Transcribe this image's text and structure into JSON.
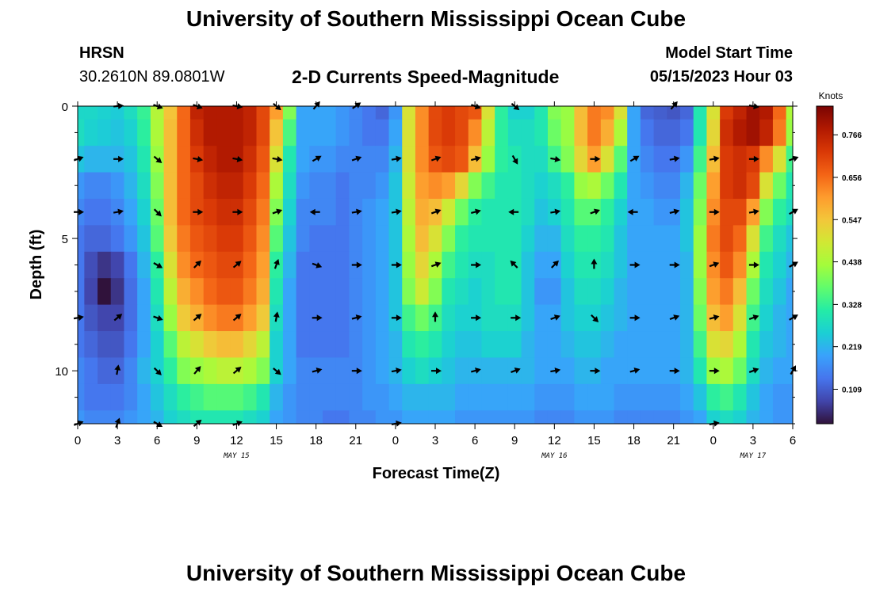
{
  "header": {
    "title": "University of Southern Mississippi Ocean Cube",
    "station": "HRSN",
    "coordinates": "30.2610N  89.0801W",
    "model_start_label": "Model Start Time",
    "model_start_value": "05/15/2023 Hour 03"
  },
  "footer": {
    "title": "University of Southern Mississippi Ocean Cube"
  },
  "chart_data": {
    "type": "heatmap",
    "title": "2-D Currents Speed-Magnitude",
    "xlabel": "Forecast Time(Z)",
    "ylabel": "Depth (ft)",
    "x_range_hours": [
      0,
      54
    ],
    "y_range_ft": [
      0,
      12
    ],
    "x_tick_labels": [
      "0",
      "3",
      "6",
      "9",
      "12",
      "15",
      "18",
      "21",
      "0",
      "3",
      "6",
      "9",
      "12",
      "15",
      "18",
      "21",
      "0",
      "3",
      "6"
    ],
    "y_tick_labels": [
      "0",
      "5",
      "10"
    ],
    "date_labels": [
      {
        "label": "MAY 15",
        "hour": 12
      },
      {
        "label": "MAY 16",
        "hour": 36
      },
      {
        "label": "MAY 17",
        "hour": 51
      }
    ],
    "colorbar": {
      "label": "Knots",
      "range": [
        0.02,
        0.84
      ],
      "ticks": [
        "0.766",
        "0.656",
        "0.547",
        "0.438",
        "0.328",
        "0.219",
        "0.109"
      ],
      "colors": [
        "#30123b",
        "#4145ab",
        "#4675ed",
        "#39a2fc",
        "#1bcfd4",
        "#24eca6",
        "#61fc6c",
        "#a4fc3b",
        "#d1e834",
        "#f3c63a",
        "#fe9b2d",
        "#f36315",
        "#d93806",
        "#b11901",
        "#7a0403"
      ]
    },
    "speed_knots_by_depth_ft": {
      "0": [
        0.27,
        0.27,
        0.26,
        0.25,
        0.28,
        0.33,
        0.45,
        0.55,
        0.66,
        0.76,
        0.78,
        0.78,
        0.78,
        0.76,
        0.7,
        0.6,
        0.4,
        0.2,
        0.2,
        0.2,
        0.18,
        0.16,
        0.14,
        0.12,
        0.18,
        0.5,
        0.62,
        0.7,
        0.72,
        0.7,
        0.68,
        0.5,
        0.32,
        0.26,
        0.26,
        0.3,
        0.4,
        0.42,
        0.56,
        0.64,
        0.62,
        0.5,
        0.2,
        0.12,
        0.11,
        0.1,
        0.12,
        0.3,
        0.5,
        0.72,
        0.76,
        0.8,
        0.78,
        0.66,
        0.44
      ],
      "1": [
        0.28,
        0.26,
        0.25,
        0.24,
        0.26,
        0.32,
        0.44,
        0.56,
        0.66,
        0.74,
        0.78,
        0.78,
        0.78,
        0.76,
        0.7,
        0.55,
        0.35,
        0.2,
        0.2,
        0.2,
        0.18,
        0.16,
        0.14,
        0.14,
        0.2,
        0.5,
        0.62,
        0.7,
        0.72,
        0.7,
        0.62,
        0.46,
        0.32,
        0.28,
        0.28,
        0.3,
        0.38,
        0.42,
        0.56,
        0.64,
        0.58,
        0.44,
        0.2,
        0.14,
        0.12,
        0.12,
        0.14,
        0.3,
        0.52,
        0.74,
        0.78,
        0.8,
        0.76,
        0.64,
        0.42
      ],
      "2": [
        0.24,
        0.22,
        0.22,
        0.22,
        0.24,
        0.3,
        0.42,
        0.56,
        0.66,
        0.72,
        0.76,
        0.78,
        0.78,
        0.74,
        0.68,
        0.5,
        0.3,
        0.2,
        0.18,
        0.18,
        0.16,
        0.16,
        0.16,
        0.16,
        0.22,
        0.5,
        0.62,
        0.68,
        0.7,
        0.68,
        0.56,
        0.42,
        0.32,
        0.3,
        0.28,
        0.28,
        0.34,
        0.4,
        0.52,
        0.6,
        0.5,
        0.36,
        0.2,
        0.16,
        0.14,
        0.14,
        0.18,
        0.34,
        0.56,
        0.72,
        0.74,
        0.72,
        0.62,
        0.5,
        0.34
      ],
      "3": [
        0.18,
        0.16,
        0.16,
        0.18,
        0.22,
        0.28,
        0.4,
        0.56,
        0.66,
        0.7,
        0.74,
        0.76,
        0.76,
        0.72,
        0.66,
        0.44,
        0.28,
        0.18,
        0.16,
        0.16,
        0.14,
        0.16,
        0.16,
        0.18,
        0.24,
        0.48,
        0.6,
        0.62,
        0.6,
        0.52,
        0.4,
        0.34,
        0.3,
        0.3,
        0.28,
        0.26,
        0.28,
        0.32,
        0.42,
        0.44,
        0.38,
        0.3,
        0.2,
        0.18,
        0.16,
        0.16,
        0.22,
        0.38,
        0.6,
        0.72,
        0.74,
        0.7,
        0.5,
        0.38,
        0.3
      ],
      "4": [
        0.16,
        0.14,
        0.14,
        0.16,
        0.2,
        0.26,
        0.38,
        0.56,
        0.66,
        0.7,
        0.72,
        0.74,
        0.74,
        0.7,
        0.64,
        0.4,
        0.26,
        0.16,
        0.16,
        0.16,
        0.14,
        0.16,
        0.18,
        0.2,
        0.24,
        0.46,
        0.58,
        0.56,
        0.48,
        0.38,
        0.32,
        0.3,
        0.3,
        0.3,
        0.28,
        0.24,
        0.26,
        0.3,
        0.36,
        0.36,
        0.32,
        0.26,
        0.2,
        0.2,
        0.18,
        0.18,
        0.24,
        0.4,
        0.62,
        0.7,
        0.7,
        0.6,
        0.4,
        0.32,
        0.28
      ],
      "5": [
        0.14,
        0.12,
        0.12,
        0.14,
        0.18,
        0.24,
        0.36,
        0.54,
        0.64,
        0.68,
        0.7,
        0.72,
        0.72,
        0.68,
        0.62,
        0.36,
        0.24,
        0.16,
        0.14,
        0.14,
        0.14,
        0.16,
        0.18,
        0.2,
        0.24,
        0.44,
        0.56,
        0.5,
        0.4,
        0.32,
        0.3,
        0.3,
        0.3,
        0.3,
        0.26,
        0.22,
        0.22,
        0.28,
        0.32,
        0.32,
        0.3,
        0.24,
        0.2,
        0.2,
        0.2,
        0.2,
        0.24,
        0.42,
        0.64,
        0.7,
        0.66,
        0.5,
        0.34,
        0.28,
        0.24
      ],
      "6": [
        0.14,
        0.09,
        0.06,
        0.08,
        0.14,
        0.22,
        0.32,
        0.5,
        0.62,
        0.66,
        0.68,
        0.7,
        0.7,
        0.66,
        0.6,
        0.32,
        0.22,
        0.14,
        0.14,
        0.14,
        0.14,
        0.16,
        0.18,
        0.2,
        0.24,
        0.42,
        0.52,
        0.44,
        0.34,
        0.3,
        0.28,
        0.28,
        0.3,
        0.3,
        0.24,
        0.2,
        0.2,
        0.26,
        0.3,
        0.3,
        0.28,
        0.24,
        0.2,
        0.2,
        0.2,
        0.2,
        0.22,
        0.42,
        0.62,
        0.68,
        0.62,
        0.44,
        0.3,
        0.26,
        0.22
      ],
      "7": [
        0.14,
        0.08,
        0.02,
        0.06,
        0.13,
        0.2,
        0.3,
        0.46,
        0.58,
        0.62,
        0.66,
        0.68,
        0.68,
        0.64,
        0.58,
        0.3,
        0.2,
        0.14,
        0.14,
        0.14,
        0.14,
        0.16,
        0.18,
        0.2,
        0.24,
        0.4,
        0.48,
        0.4,
        0.3,
        0.28,
        0.26,
        0.28,
        0.3,
        0.3,
        0.24,
        0.18,
        0.18,
        0.24,
        0.28,
        0.28,
        0.26,
        0.22,
        0.2,
        0.2,
        0.2,
        0.2,
        0.22,
        0.4,
        0.6,
        0.64,
        0.56,
        0.38,
        0.28,
        0.24,
        0.2
      ],
      "8": [
        0.14,
        0.1,
        0.08,
        0.08,
        0.13,
        0.2,
        0.28,
        0.42,
        0.54,
        0.58,
        0.62,
        0.64,
        0.64,
        0.6,
        0.54,
        0.28,
        0.2,
        0.14,
        0.14,
        0.14,
        0.14,
        0.16,
        0.18,
        0.2,
        0.24,
        0.34,
        0.38,
        0.34,
        0.28,
        0.26,
        0.26,
        0.28,
        0.28,
        0.28,
        0.24,
        0.2,
        0.2,
        0.24,
        0.26,
        0.26,
        0.24,
        0.22,
        0.2,
        0.2,
        0.2,
        0.2,
        0.22,
        0.38,
        0.56,
        0.6,
        0.5,
        0.34,
        0.26,
        0.22,
        0.2
      ],
      "9": [
        0.14,
        0.12,
        0.1,
        0.1,
        0.14,
        0.2,
        0.26,
        0.36,
        0.46,
        0.5,
        0.54,
        0.56,
        0.56,
        0.52,
        0.46,
        0.26,
        0.2,
        0.14,
        0.14,
        0.14,
        0.14,
        0.16,
        0.18,
        0.2,
        0.22,
        0.3,
        0.32,
        0.3,
        0.26,
        0.24,
        0.24,
        0.26,
        0.26,
        0.26,
        0.22,
        0.2,
        0.2,
        0.22,
        0.24,
        0.24,
        0.22,
        0.2,
        0.2,
        0.2,
        0.2,
        0.2,
        0.22,
        0.34,
        0.5,
        0.52,
        0.44,
        0.3,
        0.24,
        0.22,
        0.2
      ],
      "10": [
        0.16,
        0.14,
        0.12,
        0.12,
        0.16,
        0.22,
        0.26,
        0.32,
        0.4,
        0.42,
        0.44,
        0.46,
        0.46,
        0.44,
        0.4,
        0.26,
        0.2,
        0.16,
        0.16,
        0.16,
        0.16,
        0.16,
        0.18,
        0.2,
        0.22,
        0.26,
        0.28,
        0.26,
        0.24,
        0.22,
        0.22,
        0.22,
        0.22,
        0.22,
        0.22,
        0.2,
        0.2,
        0.2,
        0.22,
        0.22,
        0.2,
        0.2,
        0.2,
        0.2,
        0.2,
        0.2,
        0.22,
        0.3,
        0.42,
        0.44,
        0.38,
        0.28,
        0.22,
        0.2,
        0.2
      ],
      "11": [
        0.16,
        0.14,
        0.14,
        0.14,
        0.16,
        0.2,
        0.24,
        0.28,
        0.32,
        0.34,
        0.36,
        0.36,
        0.36,
        0.34,
        0.3,
        0.22,
        0.18,
        0.16,
        0.16,
        0.16,
        0.16,
        0.16,
        0.18,
        0.18,
        0.2,
        0.22,
        0.22,
        0.22,
        0.22,
        0.2,
        0.2,
        0.2,
        0.2,
        0.2,
        0.2,
        0.18,
        0.18,
        0.18,
        0.2,
        0.2,
        0.2,
        0.18,
        0.18,
        0.18,
        0.18,
        0.18,
        0.2,
        0.24,
        0.32,
        0.34,
        0.3,
        0.24,
        0.2,
        0.18,
        0.18
      ],
      "12": [
        0.18,
        0.16,
        0.16,
        0.16,
        0.18,
        0.2,
        0.22,
        0.26,
        0.28,
        0.3,
        0.3,
        0.3,
        0.3,
        0.28,
        0.26,
        0.2,
        0.18,
        0.16,
        0.16,
        0.14,
        0.14,
        0.16,
        0.16,
        0.18,
        0.18,
        0.2,
        0.2,
        0.2,
        0.2,
        0.18,
        0.18,
        0.18,
        0.18,
        0.18,
        0.18,
        0.16,
        0.16,
        0.16,
        0.18,
        0.18,
        0.18,
        0.16,
        0.16,
        0.16,
        0.16,
        0.16,
        0.18,
        0.2,
        0.26,
        0.28,
        0.26,
        0.22,
        0.2,
        0.18,
        0.18
      ]
    },
    "vector_depths_ft": [
      0,
      2,
      4,
      6,
      8,
      10,
      12
    ],
    "vector_hours": [
      0,
      3,
      6,
      9,
      12,
      15,
      18,
      21,
      24,
      27,
      30,
      33,
      36,
      39,
      42,
      45,
      48,
      51,
      54
    ],
    "vector_directions_deg": {
      "0": [
        null,
        -5,
        20,
        20,
        10,
        40,
        -50,
        -35,
        null,
        null,
        20,
        40,
        null,
        null,
        null,
        -50,
        null,
        10,
        null
      ],
      "2": [
        -20,
        0,
        40,
        10,
        10,
        10,
        -30,
        -20,
        -10,
        -20,
        -15,
        60,
        10,
        0,
        -30,
        -10,
        -10,
        0,
        -20
      ],
      "4": [
        0,
        -10,
        45,
        0,
        0,
        -20,
        180,
        -10,
        -10,
        -20,
        -15,
        180,
        -10,
        -20,
        180,
        -15,
        0,
        -10,
        -30
      ],
      "6": [
        null,
        null,
        30,
        -45,
        -40,
        -70,
        20,
        0,
        0,
        -20,
        0,
        -135,
        -45,
        -90,
        0,
        0,
        -20,
        0,
        -30
      ],
      "8": [
        -10,
        -40,
        20,
        -40,
        -40,
        -80,
        0,
        -15,
        0,
        -90,
        0,
        0,
        -20,
        45,
        0,
        -20,
        -15,
        -20,
        -30
      ],
      "10": [
        null,
        -80,
        45,
        -50,
        -40,
        40,
        -15,
        0,
        -10,
        0,
        -15,
        -20,
        -10,
        0,
        -15,
        0,
        0,
        -20,
        -60
      ],
      "12": [
        -20,
        -70,
        30,
        -40,
        -20,
        null,
        null,
        null,
        -10,
        null,
        null,
        null,
        null,
        null,
        null,
        null,
        -10,
        null,
        null
      ]
    }
  }
}
